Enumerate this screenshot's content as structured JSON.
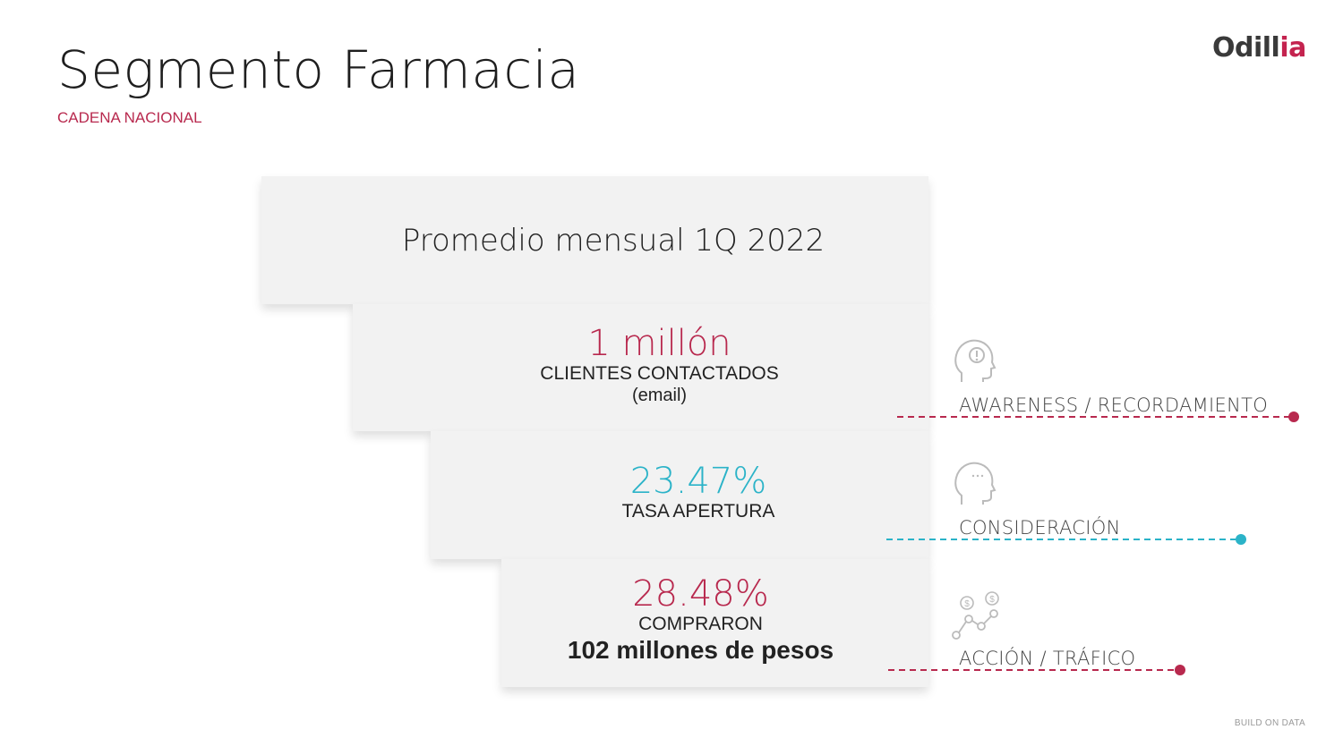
{
  "header": {
    "title": "Segmento Farmacia",
    "subtitle": "CADENA NACIONAL",
    "logo_main": "Odill",
    "logo_accent": "ia"
  },
  "funnel": {
    "heading": "Promedio mensual 1Q 2022",
    "stage1": {
      "value": "1 millón",
      "label": "CLIENTES CONTACTADOS",
      "note": "(email)"
    },
    "stage2": {
      "value": "23.47%",
      "label": "TASA APERTURA"
    },
    "stage3": {
      "value": "28.48%",
      "label": "COMPRARON",
      "highlight": "102 millones de pesos"
    }
  },
  "stages": [
    {
      "label": "AWARENESS / RECORDAMIENTO",
      "icon": "head-exclamation-icon",
      "color": "#b8294e"
    },
    {
      "label": "CONSIDERACIÓN",
      "icon": "head-thinking-icon",
      "color": "#2bb3c8"
    },
    {
      "label": "ACCIÓN / TRÁFICO",
      "icon": "money-network-icon",
      "color": "#b8294e"
    }
  ],
  "footer": {
    "tagline": "BUILD ON DATA"
  },
  "colors": {
    "accent": "#b8294e",
    "teal": "#2bb3c8",
    "panel": "#f2f2f2"
  }
}
